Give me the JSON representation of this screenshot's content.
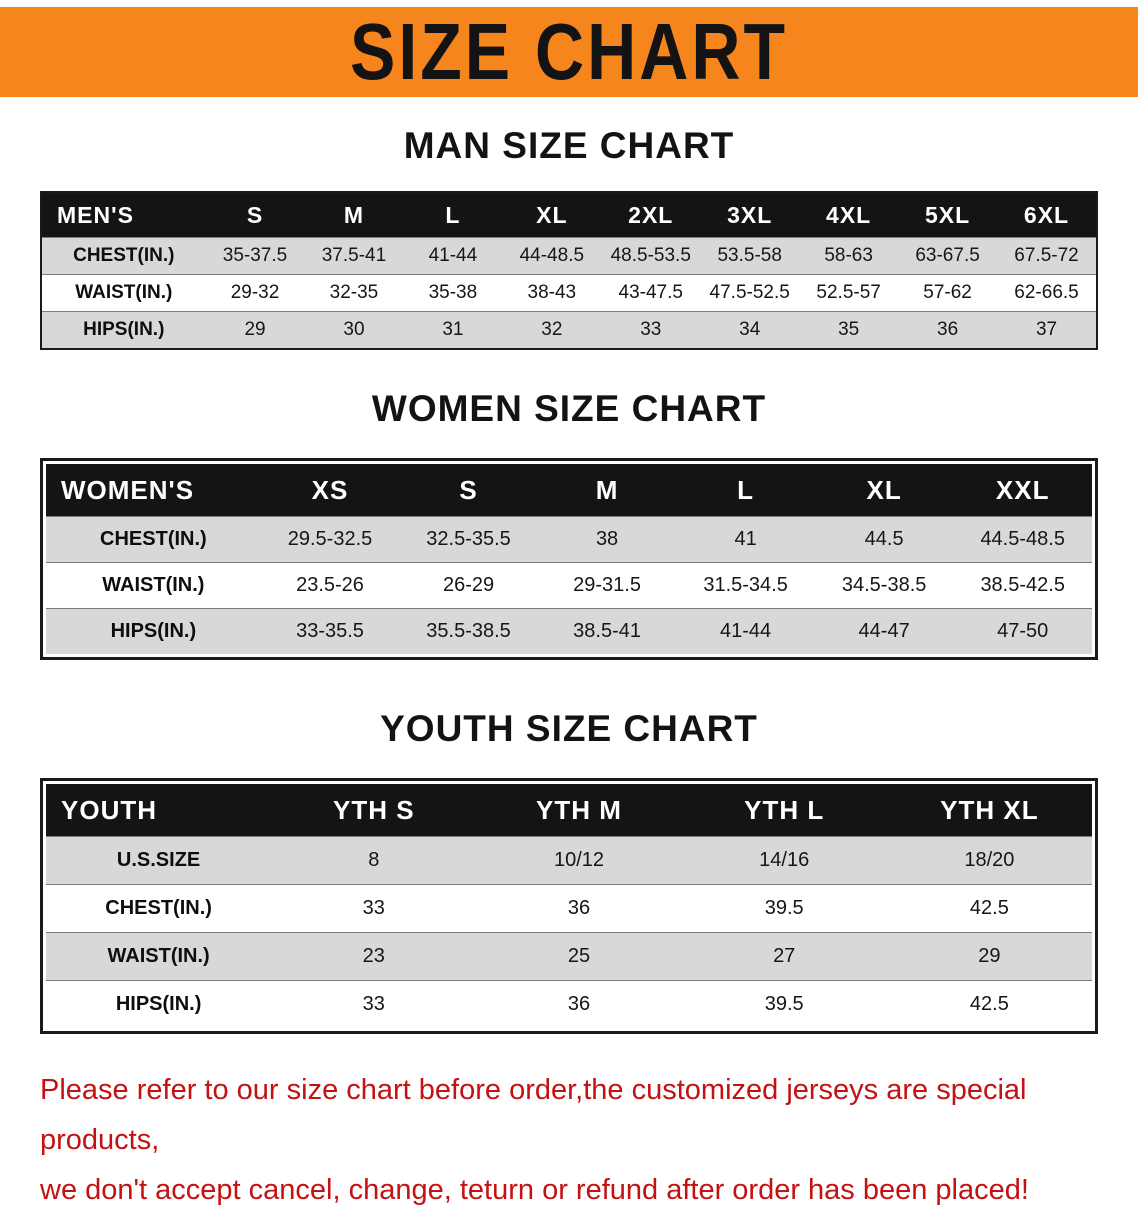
{
  "banner": {
    "title": "SIZE CHART"
  },
  "men": {
    "heading": "MAN SIZE CHART",
    "header": [
      "MEN'S",
      "S",
      "M",
      "L",
      "XL",
      "2XL",
      "3XL",
      "4XL",
      "5XL",
      "6XL"
    ],
    "rows": [
      [
        "CHEST(IN.)",
        "35-37.5",
        "37.5-41",
        "41-44",
        "44-48.5",
        "48.5-53.5",
        "53.5-58",
        "58-63",
        "63-67.5",
        "67.5-72"
      ],
      [
        "WAIST(IN.)",
        "29-32",
        "32-35",
        "35-38",
        "38-43",
        "43-47.5",
        "47.5-52.5",
        "52.5-57",
        "57-62",
        "62-66.5"
      ],
      [
        "HIPS(IN.)",
        "29",
        "30",
        "31",
        "32",
        "33",
        "34",
        "35",
        "36",
        "37"
      ]
    ]
  },
  "women": {
    "heading": "WOMEN SIZE CHART",
    "header": [
      "WOMEN'S",
      "XS",
      "S",
      "M",
      "L",
      "XL",
      "XXL"
    ],
    "rows": [
      [
        "CHEST(IN.)",
        "29.5-32.5",
        "32.5-35.5",
        "38",
        "41",
        "44.5",
        "44.5-48.5"
      ],
      [
        "WAIST(IN.)",
        "23.5-26",
        "26-29",
        "29-31.5",
        "31.5-34.5",
        "34.5-38.5",
        "38.5-42.5"
      ],
      [
        "HIPS(IN.)",
        "33-35.5",
        "35.5-38.5",
        "38.5-41",
        "41-44",
        "44-47",
        "47-50"
      ]
    ]
  },
  "youth": {
    "heading": "YOUTH SIZE CHART",
    "header": [
      "YOUTH",
      "YTH S",
      "YTH M",
      "YTH L",
      "YTH XL"
    ],
    "rows": [
      [
        "U.S.SIZE",
        "8",
        "10/12",
        "14/16",
        "18/20"
      ],
      [
        "CHEST(IN.)",
        "33",
        "36",
        "39.5",
        "42.5"
      ],
      [
        "WAIST(IN.)",
        "23",
        "25",
        "27",
        "29"
      ],
      [
        "HIPS(IN.)",
        "33",
        "36",
        "39.5",
        "42.5"
      ]
    ]
  },
  "footer": {
    "line1": "Please refer to our size chart before order,the customized jerseys are special products,",
    "line2": "we don't accept cancel, change, teturn or refund after order has been placed!"
  },
  "colors": {
    "banner_orange": "#f6851d",
    "header_black": "#141414",
    "row_gray": "#d8d8d8",
    "disclaimer_red": "#c41212"
  }
}
